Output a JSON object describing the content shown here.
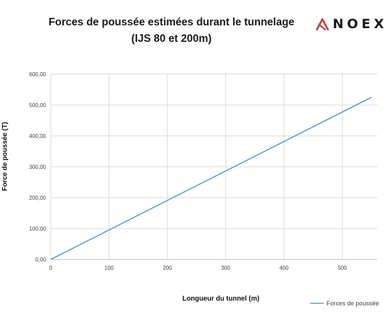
{
  "header": {
    "title_line1": "Forces de poussée estimées durant le tunnelage",
    "title_line2": "(IJS 80 et 200m)",
    "logo_text": "NOEX",
    "logo_icon": "noex-logo-mark",
    "logo_color": "#c0504d"
  },
  "chart_data": {
    "type": "line",
    "title": "Forces de poussée estimées durant le tunnelage (IJS 80 et 200m)",
    "xlabel": "Longueur du tunnel (m)",
    "ylabel": "Force de poussée (T)",
    "xlim": [
      0,
      560
    ],
    "ylim": [
      0,
      600
    ],
    "x_ticks": [
      0,
      100,
      200,
      300,
      400,
      500
    ],
    "y_ticks": [
      "0,00",
      "100,00",
      "200,00",
      "300,00",
      "400,00",
      "500,00",
      "600,00"
    ],
    "grid": true,
    "legend_position": "bottom-right",
    "series": [
      {
        "name": "Forces de poussée",
        "color": "#5b9bd5",
        "x": [
          0,
          550
        ],
        "y": [
          0,
          525
        ]
      }
    ]
  }
}
